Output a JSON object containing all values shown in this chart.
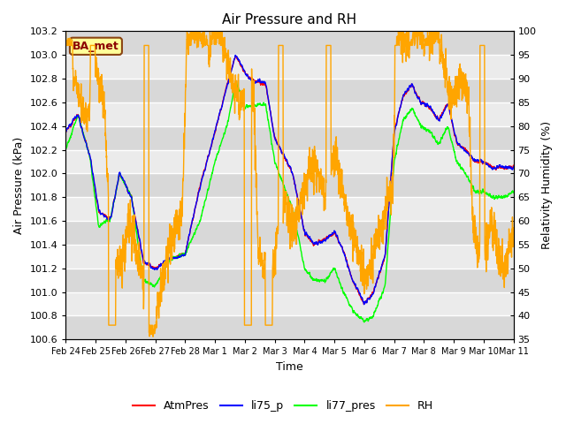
{
  "title": "Air Pressure and RH",
  "xlabel": "Time",
  "ylabel_left": "Air Pressure (kPa)",
  "ylabel_right": "Relativity Humidity (%)",
  "ylim_left": [
    100.6,
    103.2
  ],
  "ylim_right": [
    35,
    100
  ],
  "xtick_labels": [
    "Feb 24",
    "Feb 25",
    "Feb 26",
    "Feb 27",
    "Feb 28",
    "Mar 1",
    "Mar 2",
    "Mar 3",
    "Mar 4",
    "Mar 5",
    "Mar 6",
    "Mar 7",
    "Mar 8",
    "Mar 9",
    "Mar 10",
    "Mar 11"
  ],
  "legend_labels": [
    "AtmPres",
    "li75_p",
    "li77_pres",
    "RH"
  ],
  "line_colors": [
    "red",
    "blue",
    "lime",
    "orange"
  ],
  "annotation_text": "BA_met",
  "annotation_bg": "#FFFF99",
  "annotation_border": "#8B4513",
  "plot_bg_color": "#e8e8e8",
  "band_color_dark": "#d8d8d8",
  "band_color_light": "#ebebeb"
}
